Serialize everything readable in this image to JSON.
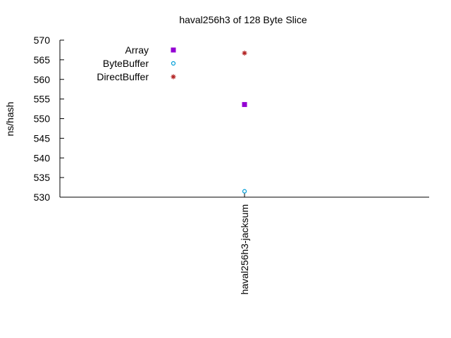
{
  "chart_data": {
    "type": "scatter",
    "title": "haval256h3 of 128 Byte Slice",
    "xlabel": "",
    "ylabel": "ns/hash",
    "categories": [
      "haval256h3-jacksum"
    ],
    "ylim": [
      530,
      570
    ],
    "yticks": [
      "530",
      "535",
      "540",
      "545",
      "550",
      "555",
      "560",
      "565",
      "570"
    ],
    "grid": false,
    "legend_position": "top-left",
    "series": [
      {
        "name": "Array",
        "values": [
          553.6
        ],
        "color": "#9400d3",
        "marker": "square"
      },
      {
        "name": "ByteBuffer",
        "values": [
          531.5
        ],
        "color": "#009ed7",
        "marker": "circle"
      },
      {
        "name": "DirectBuffer",
        "values": [
          566.7
        ],
        "color": "#b22222",
        "marker": "asterisk"
      }
    ]
  }
}
